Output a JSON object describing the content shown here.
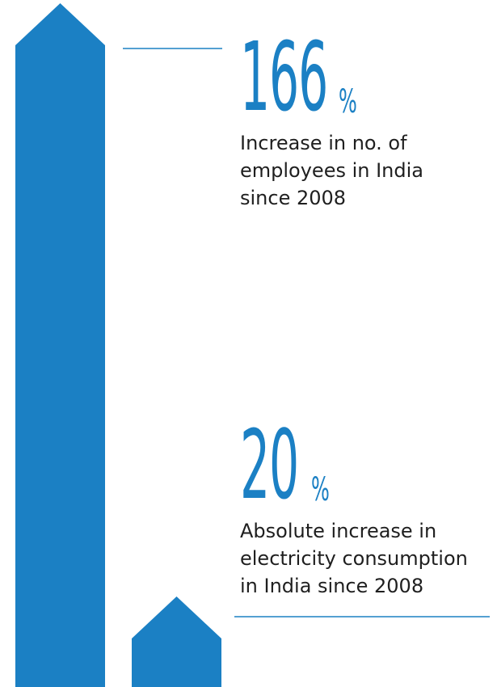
{
  "colors": {
    "bar": "#1b80c4",
    "line": "#1b80c4",
    "text": "#1f1f1f"
  },
  "chart_data": {
    "type": "bar",
    "values": [
      166,
      20
    ],
    "unit": "%",
    "labels": [
      "Increase in no. of employees in India since 2008",
      "Absolute increase in electricity consumption in India since 2008"
    ]
  },
  "stats": [
    {
      "value": "166",
      "unit": "%",
      "desc_lines": [
        "Increase in no. of",
        "employees in India",
        "since 2008"
      ]
    },
    {
      "value": "20",
      "unit": "%",
      "desc_lines": [
        "Absolute increase in",
        "electricity consumption",
        "in India since 2008"
      ]
    }
  ]
}
